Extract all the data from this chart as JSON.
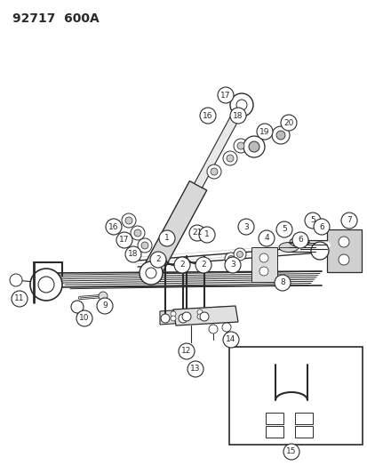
{
  "title": "92717  600A",
  "bg_color": "#ffffff",
  "line_color": "#2a2a2a",
  "fig_w": 4.14,
  "fig_h": 5.33,
  "dpi": 100
}
